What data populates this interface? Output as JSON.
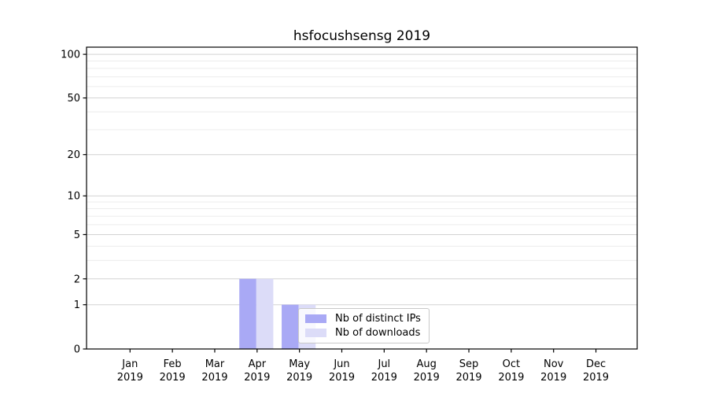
{
  "figure": {
    "background": "#ffffff"
  },
  "chart_data": {
    "type": "bar",
    "title": "hsfocushsensg 2019",
    "categories": [
      "Jan",
      "Feb",
      "Mar",
      "Apr",
      "May",
      "Jun",
      "Jul",
      "Aug",
      "Sep",
      "Oct",
      "Nov",
      "Dec"
    ],
    "x_year_label": "2019",
    "series": [
      {
        "name": "Nb of distinct IPs",
        "color": "#a9a9f5",
        "values": [
          0,
          0,
          0,
          2,
          1,
          0,
          0,
          0,
          0,
          0,
          0,
          0
        ]
      },
      {
        "name": "Nb of downloads",
        "color": "#dcdcf8",
        "values": [
          0,
          0,
          0,
          2,
          1,
          0,
          0,
          0,
          0,
          0,
          0,
          0
        ]
      }
    ],
    "yscale": "log1p",
    "ylim": [
      0,
      112
    ],
    "yticks": [
      0,
      1,
      2,
      5,
      10,
      20,
      50,
      100
    ],
    "yticks_minor": [
      3,
      4,
      6,
      7,
      8,
      9,
      30,
      40,
      60,
      70,
      80,
      90
    ],
    "grid": true,
    "legend_position": "lower-center",
    "colors": {
      "grid_major": "#d2d2d2",
      "grid_minor": "#ececec",
      "spine": "#000000",
      "text": "#000000"
    }
  }
}
